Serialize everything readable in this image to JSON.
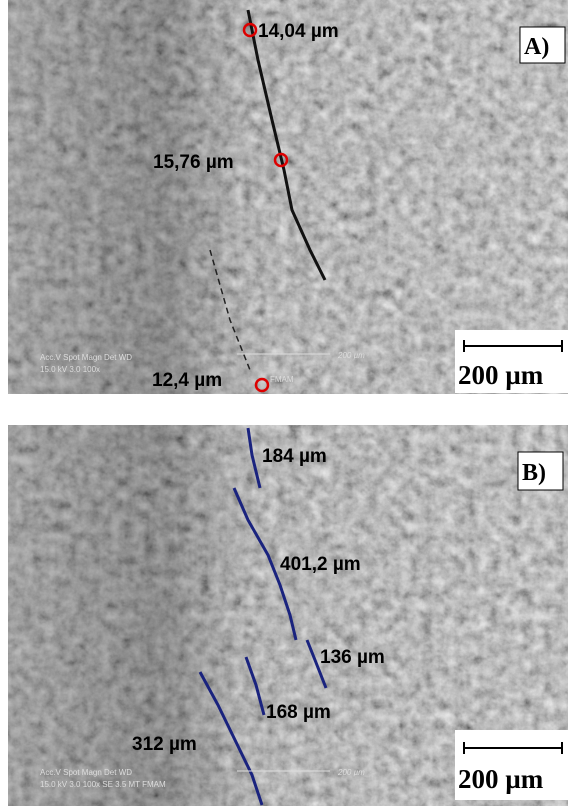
{
  "panels": [
    {
      "label": "A)",
      "annotations": [
        "14,04 µm",
        "15,76 µm",
        "12,4 µm"
      ],
      "scale_bar": "200 µm",
      "footer": {
        "header": "Acc.V  Spot Magn   Det  WD",
        "values": "15.0 kV 3.0   100x",
        "micron_marker": "200 µm",
        "lab": "FMAM"
      }
    },
    {
      "label": "B)",
      "annotations": [
        "184 µm",
        "401,2 µm",
        "136 µm",
        "168 µm",
        "312 µm"
      ],
      "scale_bar": "200 µm",
      "footer": {
        "header": "Acc.V  Spot Magn   Det  WD",
        "values": "15.0 kV 3.0   100x   SE  3.5  MT FMAM",
        "micron_marker": "200 µm"
      }
    }
  ]
}
